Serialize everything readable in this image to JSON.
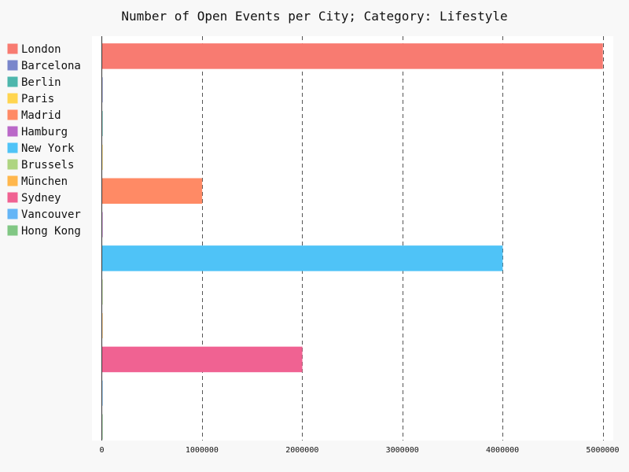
{
  "chart_data": {
    "type": "bar",
    "orientation": "horizontal",
    "title": "Number of Open Events per City; Category: Lifestyle",
    "xlabel": "",
    "ylabel": "",
    "xlim": [
      0,
      5000000
    ],
    "grid": true,
    "legend_position": "left",
    "x_ticks": [
      "0",
      "1000000",
      "2000000",
      "3000000",
      "4000000",
      "5000000"
    ],
    "series": [
      {
        "name": "London",
        "value": 5000000,
        "color": "#f87b71"
      },
      {
        "name": "Barcelona",
        "value": 0,
        "color": "#7986cb"
      },
      {
        "name": "Berlin",
        "value": 0,
        "color": "#4db6ac"
      },
      {
        "name": "Paris",
        "value": 0,
        "color": "#ffd54f"
      },
      {
        "name": "Madrid",
        "value": 1000000,
        "color": "#ff8a65"
      },
      {
        "name": "Hamburg",
        "value": 0,
        "color": "#ba68c8"
      },
      {
        "name": "New York",
        "value": 4000000,
        "color": "#4fc3f7"
      },
      {
        "name": "Brussels",
        "value": 0,
        "color": "#aed581"
      },
      {
        "name": "München",
        "value": 0,
        "color": "#ffb74d"
      },
      {
        "name": "Sydney",
        "value": 2000000,
        "color": "#f06292"
      },
      {
        "name": "Vancouver",
        "value": 0,
        "color": "#64b5f6"
      },
      {
        "name": "Hong Kong",
        "value": 0,
        "color": "#81c784"
      }
    ]
  }
}
